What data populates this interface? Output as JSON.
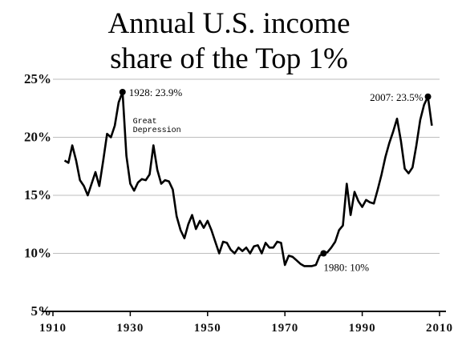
{
  "chart_data": {
    "type": "line",
    "title_lines": [
      "Annual U.S. income",
      "share of the Top 1%"
    ],
    "xlabel": "",
    "ylabel": "",
    "xlim": [
      1910,
      2010
    ],
    "ylim": [
      5,
      25
    ],
    "x_ticks": [
      1910,
      1930,
      1950,
      1970,
      1990,
      2010
    ],
    "y_ticks": [
      5,
      10,
      15,
      20,
      25
    ],
    "y_tick_labels": [
      "5%",
      "10%",
      "15%",
      "20%",
      "25%"
    ],
    "grid": "horizontal",
    "line_color": "#000000",
    "grid_color": "#bdbdbd",
    "series": [
      {
        "x": [
          1913,
          1914,
          1915,
          1916,
          1917,
          1918,
          1919,
          1920,
          1921,
          1922,
          1923,
          1924,
          1925,
          1926,
          1927,
          1928,
          1929,
          1930,
          1931,
          1932,
          1933,
          1934,
          1935,
          1936,
          1937,
          1938,
          1939,
          1940,
          1941,
          1942,
          1943,
          1944,
          1945,
          1946,
          1947,
          1948,
          1949,
          1950,
          1951,
          1952,
          1953,
          1954,
          1955,
          1956,
          1957,
          1958,
          1959,
          1960,
          1961,
          1962,
          1963,
          1964,
          1965,
          1966,
          1967,
          1968,
          1969,
          1970,
          1971,
          1972,
          1973,
          1974,
          1975,
          1976,
          1977,
          1978,
          1979,
          1980,
          1981,
          1982,
          1983,
          1984,
          1985,
          1986,
          1987,
          1988,
          1989,
          1990,
          1991,
          1992,
          1993,
          1994,
          1995,
          1996,
          1997,
          1998,
          1999,
          2000,
          2001,
          2002,
          2003,
          2004,
          2005,
          2006,
          2007,
          2008
        ],
        "values": [
          18.0,
          17.8,
          19.3,
          18.0,
          16.3,
          15.8,
          15.0,
          16.0,
          17.0,
          15.8,
          18.0,
          20.3,
          20.0,
          21.0,
          23.0,
          23.9,
          18.4,
          16.0,
          15.4,
          16.1,
          16.4,
          16.3,
          16.8,
          19.3,
          17.2,
          16.0,
          16.3,
          16.2,
          15.5,
          13.2,
          12.0,
          11.3,
          12.5,
          13.3,
          12.1,
          12.8,
          12.2,
          12.8,
          12.0,
          11.0,
          10.0,
          11.0,
          10.9,
          10.3,
          10.0,
          10.5,
          10.2,
          10.5,
          10.0,
          10.6,
          10.7,
          10.0,
          10.9,
          10.5,
          10.5,
          11.0,
          10.9,
          9.0,
          9.8,
          9.7,
          9.4,
          9.1,
          8.9,
          8.9,
          8.9,
          9.0,
          9.8,
          10.0,
          10.1,
          10.5,
          11.0,
          12.0,
          12.4,
          16.0,
          13.3,
          15.3,
          14.5,
          14.0,
          14.6,
          14.4,
          14.3,
          15.5,
          16.8,
          18.3,
          19.5,
          20.5,
          21.6,
          19.7,
          17.3,
          16.9,
          17.4,
          19.3,
          21.5,
          22.8,
          23.5,
          21.0
        ]
      }
    ],
    "annotations": [
      {
        "x": 1928,
        "y": 23.9,
        "text": "1928: 23.9%"
      },
      {
        "x": 2007,
        "y": 23.5,
        "text": "2007: 23.5%"
      },
      {
        "x": 1980,
        "y": 10.0,
        "text": "1980: 10%"
      }
    ],
    "note_lines": [
      "Great",
      "Depression"
    ]
  }
}
